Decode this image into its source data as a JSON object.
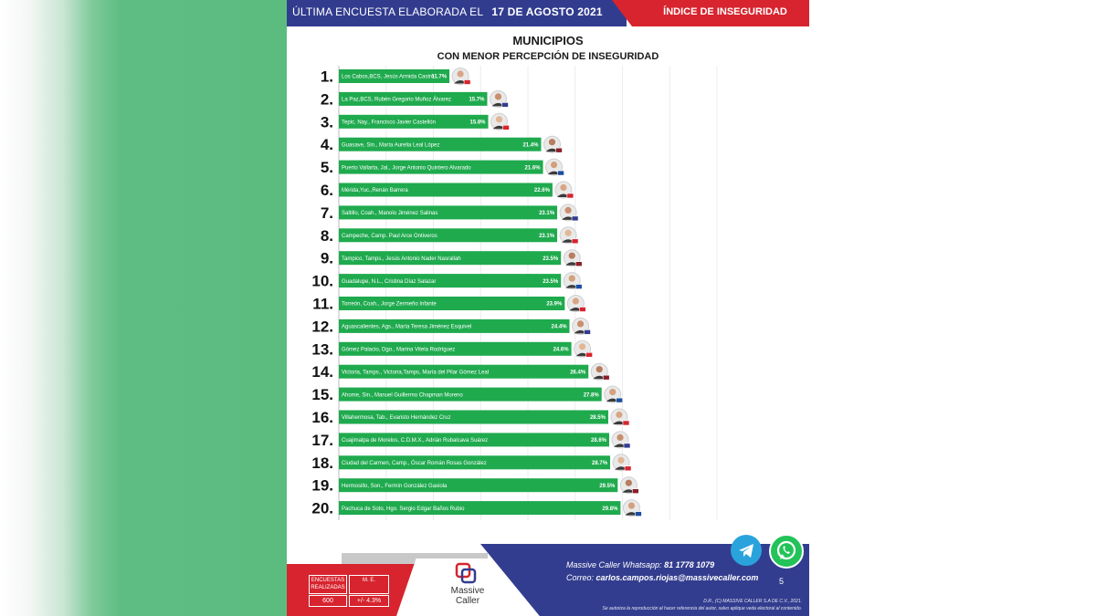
{
  "header": {
    "left_text": "ÚLTIMA ENCUESTA ELABORADA EL",
    "date": "17  DE AGOSTO 2021",
    "right_text": "ÍNDICE DE INSEGURIDAD"
  },
  "chart_data": {
    "type": "bar",
    "orientation": "horizontal",
    "title": "MUNICIPIOS",
    "subtitle": "CON MENOR PERCEPCIÓN DE INSEGURIDAD",
    "ranks": [
      "1.",
      "2.",
      "3.",
      "4.",
      "5.",
      "6.",
      "7.",
      "8.",
      "9.",
      "10.",
      "11.",
      "12.",
      "13.",
      "14.",
      "15.",
      "16.",
      "17.",
      "18.",
      "19.",
      "20."
    ],
    "categories": [
      "Los Cabos,BCS, Jesús Armida Castro",
      "La Paz,BCS, Rubén Gregorio Muñoz Álvarez",
      "Tepic, Nay., Francisco Javier Castellón",
      "Guasave, Sin., María Aurelia Leal López",
      "Puerto Vallarta, Jal., Jorge Antonio Quintero Alvarado",
      "Mérida,Yuc.,Renán Barrera",
      "Saltillo, Coah., Manolo Jiménez Salinas",
      "Campeche, Camp. Paul Arce Ontiveros",
      "Tampico, Tamps., Jesús Antonio Nader Nasrallah",
      "Guadalupe, N.L., Cristina Díaz Salazar",
      "Torreón, Coah., Jorge Zermeño Infante",
      "Aguascalientes, Ags., María Teresa Jiménez Esquivel",
      "Gómez Palacio, Dgo., Marina Vitela Rodríguez",
      "Victoria, Tamps., Victoria,Tamps, María del Pilar Gómez Leal",
      "Ahome, Sin., Manuel Guillermo Chapman Moreno",
      "Villahermosa, Tab., Evaristo Hernández Cruz",
      "Cuajimalpa de Morelos, C.D.M.X., Adrián Rubalcava Suárez",
      "Ciudad del Carmen, Camp., Óscar Román Rosas González",
      "Hermosillo, Son., Fermín González Gaxiola",
      "Pachuca de Soto, Hgo. Sergio Edgar Baños Rubio"
    ],
    "values": [
      11.7,
      15.7,
      15.8,
      21.4,
      21.6,
      22.6,
      23.1,
      23.1,
      23.5,
      23.5,
      23.9,
      24.4,
      24.6,
      26.4,
      27.8,
      28.5,
      28.6,
      28.7,
      29.5,
      29.8
    ],
    "value_labels": [
      "11.7%",
      "15.7%",
      "15.8%",
      "21.4%",
      "21.6%",
      "22.6%",
      "23.1%",
      "23.1%",
      "23.5%",
      "23.5%",
      "23.9%",
      "24.4%",
      "24.6%",
      "26.4%",
      "27.8%",
      "28.5%",
      "28.6%",
      "28.7%",
      "29.5%",
      "29.8%"
    ],
    "xlim": [
      0,
      40
    ],
    "bar_color": "#1faa4e",
    "grid": true
  },
  "footer": {
    "stats_headers": [
      "ENCUESTAS REALIZADAS",
      "M. E."
    ],
    "stats_values": [
      "600",
      "+/- 4.3%"
    ],
    "logo_text": "Massive Caller",
    "whatsapp_label": "Massive Caller Whatsapp:",
    "whatsapp_number": "81 1778 1079",
    "email_label": "Correo:",
    "email": "carlos.campos.riojas@massivecaller.com",
    "page_number": "5",
    "legal_1": "D.R., (C) MASSIVE CALLER S.A DE C.V., 2021.",
    "legal_2": "Se autoriza la reproducción al hacer referencia del autor, salvo aplique veda electoral al contenido."
  },
  "colors": {
    "blue": "#323c8f",
    "red": "#d7242e",
    "green": "#1faa4e"
  },
  "icons": [
    "telegram-icon",
    "whatsapp-icon",
    "massive-caller-logo"
  ]
}
